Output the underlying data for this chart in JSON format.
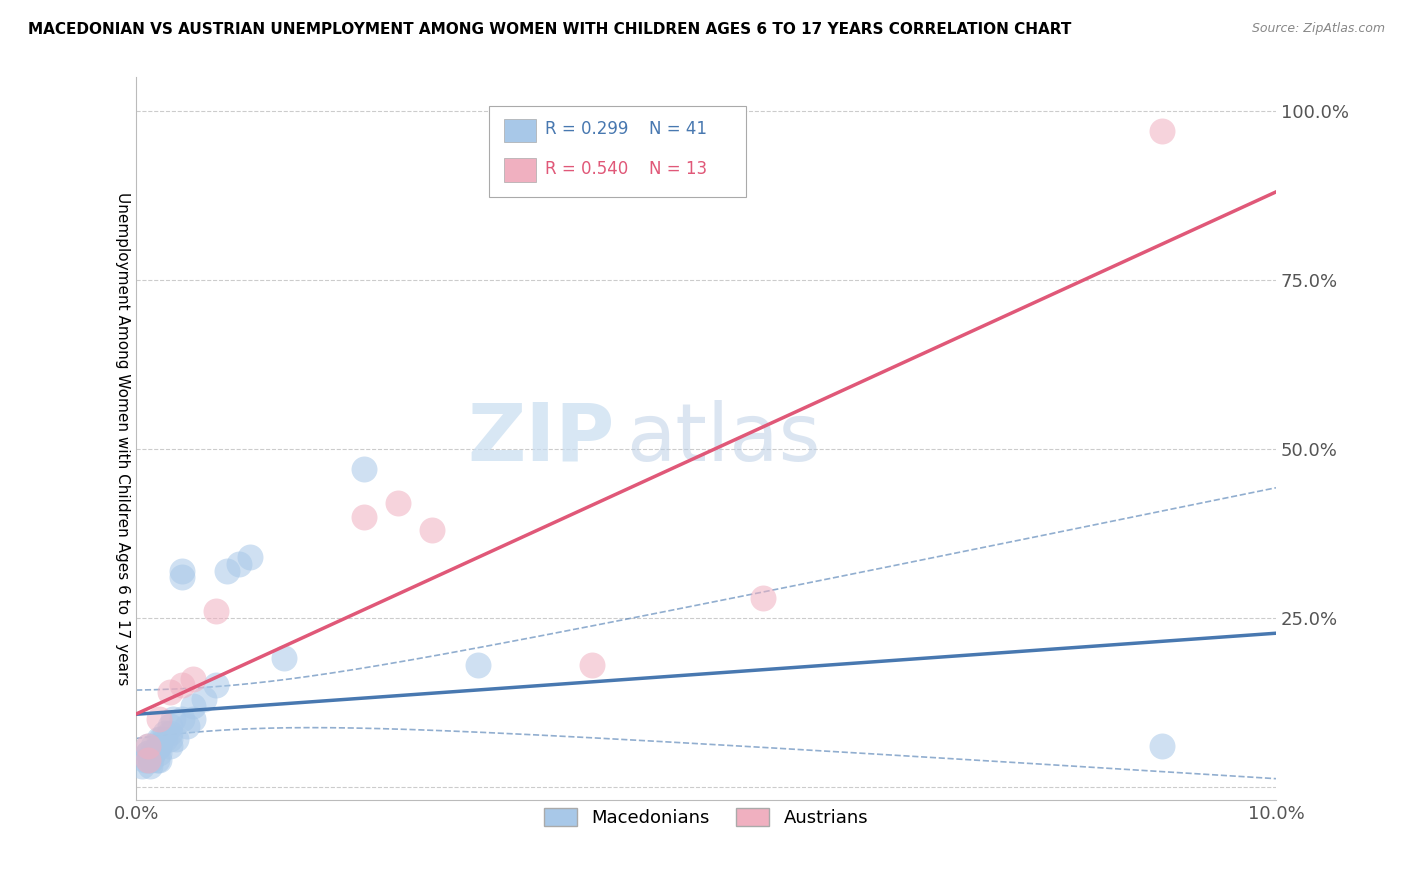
{
  "title": "MACEDONIAN VS AUSTRIAN UNEMPLOYMENT AMONG WOMEN WITH CHILDREN AGES 6 TO 17 YEARS CORRELATION CHART",
  "source": "Source: ZipAtlas.com",
  "ylabel": "Unemployment Among Women with Children Ages 6 to 17 years",
  "xlim": [
    0.0,
    0.1
  ],
  "ylim": [
    -0.02,
    1.05
  ],
  "xticks": [
    0.0,
    0.02,
    0.04,
    0.06,
    0.08,
    0.1
  ],
  "xticklabels": [
    "0.0%",
    "",
    "",
    "",
    "",
    "10.0%"
  ],
  "yticks": [
    0.0,
    0.25,
    0.5,
    0.75,
    1.0
  ],
  "yticklabels": [
    "",
    "25.0%",
    "50.0%",
    "75.0%",
    "100.0%"
  ],
  "legend_blue_r": "R = 0.299",
  "legend_blue_n": "N = 41",
  "legend_pink_r": "R = 0.540",
  "legend_pink_n": "N = 13",
  "blue_color": "#a8c8e8",
  "pink_color": "#f0b0c0",
  "blue_line_color": "#4878b0",
  "pink_line_color": "#e05878",
  "watermark_zip": "ZIP",
  "watermark_atlas": "atlas",
  "macedonian_x": [
    0.0005,
    0.0008,
    0.001,
    0.001,
    0.001,
    0.001,
    0.0012,
    0.0013,
    0.0015,
    0.0015,
    0.0015,
    0.0018,
    0.002,
    0.002,
    0.002,
    0.002,
    0.002,
    0.0022,
    0.0025,
    0.0025,
    0.003,
    0.003,
    0.003,
    0.003,
    0.0032,
    0.0035,
    0.004,
    0.004,
    0.004,
    0.0045,
    0.005,
    0.005,
    0.006,
    0.007,
    0.008,
    0.009,
    0.01,
    0.013,
    0.02,
    0.03,
    0.09
  ],
  "macedonian_y": [
    0.03,
    0.04,
    0.05,
    0.04,
    0.06,
    0.05,
    0.03,
    0.04,
    0.05,
    0.06,
    0.05,
    0.04,
    0.06,
    0.07,
    0.05,
    0.04,
    0.06,
    0.07,
    0.08,
    0.07,
    0.08,
    0.06,
    0.07,
    0.09,
    0.1,
    0.07,
    0.1,
    0.31,
    0.32,
    0.09,
    0.12,
    0.1,
    0.13,
    0.15,
    0.32,
    0.33,
    0.34,
    0.19,
    0.47,
    0.18,
    0.06
  ],
  "austrian_x": [
    0.001,
    0.001,
    0.002,
    0.003,
    0.004,
    0.005,
    0.007,
    0.02,
    0.023,
    0.026,
    0.04,
    0.09,
    0.055
  ],
  "austrian_y": [
    0.04,
    0.06,
    0.1,
    0.14,
    0.15,
    0.16,
    0.26,
    0.4,
    0.42,
    0.38,
    0.18,
    0.97,
    0.28
  ]
}
